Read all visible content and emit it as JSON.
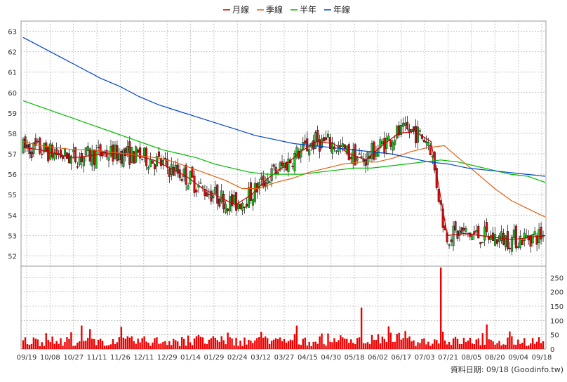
{
  "chart_data": [
    {
      "type": "candlestick",
      "ylim": [
        51.5,
        63.5
      ],
      "y_ticks": [
        "52",
        "53",
        "54",
        "55",
        "56",
        "57",
        "58",
        "59",
        "60",
        "61",
        "62",
        "63"
      ],
      "grid": true,
      "legend_position": "top-center",
      "legend": [
        {
          "name": "月線",
          "color": "#cc0000"
        },
        {
          "name": "季線",
          "color": "#e06010"
        },
        {
          "name": "半年",
          "color": "#00bb00"
        },
        {
          "name": "年線",
          "color": "#0044cc"
        }
      ],
      "up_color": "#22bb22",
      "down_color": "#cc1111",
      "x_labels": [
        "09/19",
        "10/08",
        "10/27",
        "11/11",
        "11/26",
        "12/11",
        "12/29",
        "01/14",
        "01/29",
        "02/24",
        "03/12",
        "03/27",
        "04/15",
        "04/30",
        "05/18",
        "06/02",
        "06/17",
        "07/03",
        "07/21",
        "08/05",
        "08/20",
        "09/04",
        "09/18"
      ],
      "series": [
        {
          "name": "月線",
          "values": [
            57.3,
            57.2,
            57.0,
            56.8,
            56.9,
            57.0,
            57.0,
            56.9,
            56.7,
            56.3,
            55.9,
            55.3,
            54.9,
            54.5,
            55.0,
            55.8,
            56.4,
            57.1,
            57.6,
            57.5,
            57.0,
            56.7,
            57.4,
            58.0,
            58.1,
            57.6,
            53.0,
            53.1,
            53.0,
            52.9,
            52.8,
            52.9,
            53.0
          ]
        },
        {
          "name": "季線",
          "values": [
            57.6,
            57.4,
            57.3,
            57.2,
            57.2,
            57.1,
            57.0,
            56.9,
            56.8,
            56.6,
            56.3,
            56.0,
            55.7,
            55.3,
            55.3,
            55.6,
            55.8,
            56.1,
            56.3,
            56.5,
            56.6,
            56.6,
            56.8,
            57.1,
            57.3,
            57.4,
            56.7,
            56.0,
            55.3,
            54.7,
            54.3,
            53.9
          ]
        },
        {
          "name": "半年",
          "values": [
            59.6,
            59.3,
            59.0,
            58.7,
            58.4,
            58.1,
            57.8,
            57.5,
            57.2,
            57.0,
            56.8,
            56.5,
            56.3,
            56.1,
            56.0,
            56.0,
            56.0,
            56.1,
            56.2,
            56.3,
            56.3,
            56.4,
            56.5,
            56.6,
            56.7,
            56.6,
            56.4,
            56.2,
            56.0,
            55.9,
            55.6
          ]
        },
        {
          "name": "年線",
          "values": [
            62.7,
            62.2,
            61.7,
            61.2,
            60.7,
            60.3,
            59.8,
            59.4,
            59.1,
            58.8,
            58.5,
            58.2,
            57.9,
            57.7,
            57.5,
            57.4,
            57.3,
            57.2,
            57.1,
            57.0,
            56.8,
            56.6,
            56.5,
            56.3,
            56.2,
            56.1,
            56.0,
            55.9
          ]
        }
      ]
    },
    {
      "type": "bar",
      "ylim": [
        0,
        290
      ],
      "y_ticks": [
        "0",
        "50",
        "100",
        "150",
        "200",
        "250"
      ],
      "color": "#ee0000"
    }
  ],
  "footer": "資料日期: 09/18  (Goodinfo.tw)"
}
